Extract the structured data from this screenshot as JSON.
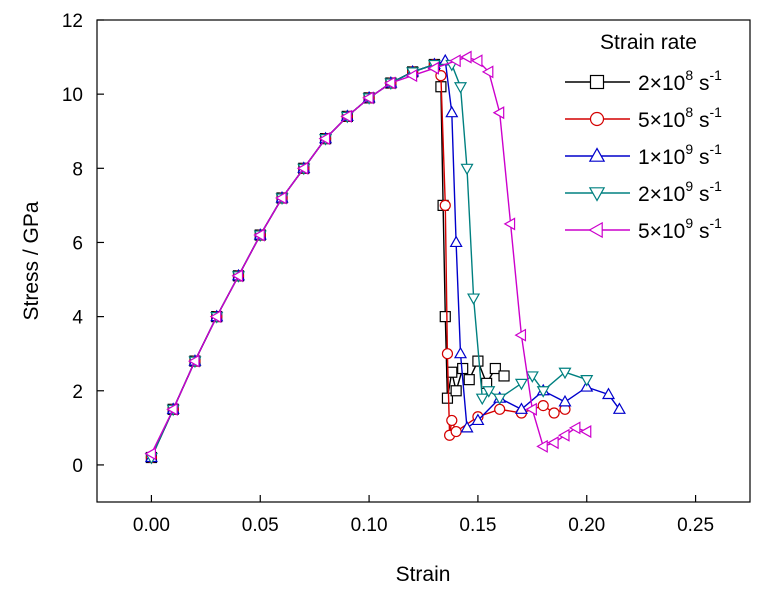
{
  "chart_data": {
    "type": "line",
    "title": "",
    "xlabel": "Strain",
    "ylabel": "Stress / GPa",
    "xlim": [
      -0.025,
      0.275
    ],
    "ylim": [
      -1,
      12
    ],
    "x_ticks": [
      0.0,
      0.05,
      0.1,
      0.15,
      0.2,
      0.25
    ],
    "x_tick_labels": [
      "0.00",
      "0.05",
      "0.10",
      "0.15",
      "0.20",
      "0.25"
    ],
    "y_ticks": [
      0,
      2,
      4,
      6,
      8,
      10,
      12
    ],
    "y_tick_labels": [
      "0",
      "2",
      "4",
      "6",
      "8",
      "10",
      "12"
    ],
    "grid": false,
    "legend": {
      "title": "Strain rate",
      "placement": "top-right"
    },
    "series": [
      {
        "name": "2×10⁸ s⁻¹",
        "legend_base": "2×10",
        "legend_exp": "8",
        "legend_unit": " s",
        "legend_unit_exp": "-1",
        "color": "#000000",
        "marker": "square",
        "x": [
          0.0,
          0.01,
          0.02,
          0.03,
          0.04,
          0.05,
          0.06,
          0.07,
          0.08,
          0.09,
          0.1,
          0.11,
          0.12,
          0.13,
          0.133,
          0.134,
          0.135,
          0.136,
          0.138,
          0.14,
          0.143,
          0.146,
          0.15,
          0.154,
          0.158,
          0.162
        ],
        "y": [
          0.2,
          1.5,
          2.8,
          4.0,
          5.1,
          6.2,
          7.2,
          8.0,
          8.8,
          9.4,
          9.9,
          10.3,
          10.6,
          10.8,
          10.2,
          7.0,
          4.0,
          1.8,
          2.5,
          2.0,
          2.6,
          2.3,
          2.8,
          2.2,
          2.6,
          2.4
        ]
      },
      {
        "name": "5×10⁸ s⁻¹",
        "legend_base": "5×10",
        "legend_exp": "8",
        "legend_unit": " s",
        "legend_unit_exp": "-1",
        "color": "#d40000",
        "marker": "circle",
        "x": [
          0.0,
          0.01,
          0.02,
          0.03,
          0.04,
          0.05,
          0.06,
          0.07,
          0.08,
          0.09,
          0.1,
          0.11,
          0.12,
          0.13,
          0.133,
          0.135,
          0.136,
          0.137,
          0.138,
          0.14,
          0.15,
          0.16,
          0.17,
          0.18,
          0.185,
          0.19
        ],
        "y": [
          0.2,
          1.5,
          2.8,
          4.0,
          5.1,
          6.2,
          7.2,
          8.0,
          8.8,
          9.4,
          9.9,
          10.3,
          10.6,
          10.8,
          10.5,
          7.0,
          3.0,
          0.8,
          1.2,
          0.9,
          1.3,
          1.5,
          1.4,
          1.6,
          1.4,
          1.5
        ]
      },
      {
        "name": "1×10⁹ s⁻¹",
        "legend_base": "1×10",
        "legend_exp": "9",
        "legend_unit": " s",
        "legend_unit_exp": "-1",
        "color": "#0000cc",
        "marker": "triangle-up",
        "x": [
          0.0,
          0.01,
          0.02,
          0.03,
          0.04,
          0.05,
          0.06,
          0.07,
          0.08,
          0.09,
          0.1,
          0.11,
          0.12,
          0.13,
          0.135,
          0.138,
          0.14,
          0.142,
          0.145,
          0.15,
          0.16,
          0.17,
          0.18,
          0.19,
          0.2,
          0.21,
          0.215
        ],
        "y": [
          0.2,
          1.5,
          2.8,
          4.0,
          5.1,
          6.2,
          7.2,
          8.0,
          8.8,
          9.4,
          9.9,
          10.3,
          10.6,
          10.8,
          10.9,
          9.5,
          6.0,
          3.0,
          1.0,
          1.2,
          1.8,
          1.5,
          2.0,
          1.7,
          2.1,
          1.9,
          1.5
        ]
      },
      {
        "name": "2×10⁹ s⁻¹",
        "legend_base": "2×10",
        "legend_exp": "9",
        "legend_unit": " s",
        "legend_unit_exp": "-1",
        "color": "#008080",
        "marker": "triangle-down",
        "x": [
          0.0,
          0.01,
          0.02,
          0.03,
          0.04,
          0.05,
          0.06,
          0.07,
          0.08,
          0.09,
          0.1,
          0.11,
          0.12,
          0.13,
          0.138,
          0.142,
          0.145,
          0.148,
          0.152,
          0.155,
          0.16,
          0.17,
          0.175,
          0.18,
          0.19,
          0.2
        ],
        "y": [
          0.2,
          1.5,
          2.8,
          4.0,
          5.1,
          6.2,
          7.2,
          8.0,
          8.8,
          9.4,
          9.9,
          10.3,
          10.6,
          10.8,
          10.8,
          10.2,
          8.0,
          4.5,
          1.8,
          2.0,
          1.8,
          2.2,
          2.4,
          2.0,
          2.5,
          2.3
        ]
      },
      {
        "name": "5×10⁹ s⁻¹",
        "legend_base": "5×10",
        "legend_exp": "9",
        "legend_unit": " s",
        "legend_unit_exp": "-1",
        "color": "#cc00cc",
        "marker": "triangle-left",
        "x": [
          0.0,
          0.01,
          0.02,
          0.03,
          0.04,
          0.05,
          0.06,
          0.07,
          0.08,
          0.09,
          0.1,
          0.11,
          0.12,
          0.13,
          0.14,
          0.145,
          0.15,
          0.155,
          0.16,
          0.165,
          0.17,
          0.175,
          0.18,
          0.185,
          0.19,
          0.195,
          0.2
        ],
        "y": [
          0.3,
          1.5,
          2.8,
          4.0,
          5.1,
          6.2,
          7.2,
          8.0,
          8.8,
          9.4,
          9.9,
          10.3,
          10.5,
          10.7,
          10.9,
          11.0,
          10.9,
          10.6,
          9.5,
          6.5,
          3.5,
          1.5,
          0.5,
          0.6,
          0.8,
          1.0,
          0.9
        ]
      }
    ]
  }
}
